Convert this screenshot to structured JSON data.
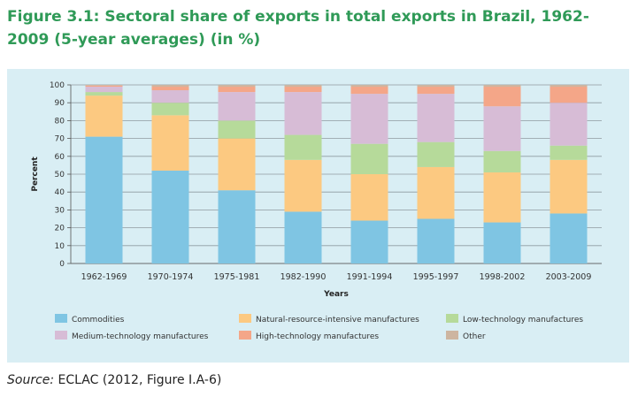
{
  "figure": {
    "title": "Figure 3.1: Sectoral share of exports in total exports in Brazil, 1962-2009 (5-year averages) (in %)",
    "source_label": "Source:",
    "source_text": " ECLAC (2012, Figure I.A-6)"
  },
  "chart_data": {
    "type": "bar",
    "stacked": true,
    "title": "",
    "xlabel": "Years",
    "ylabel": "Percent",
    "ylim": [
      0,
      100
    ],
    "yticks": [
      0,
      10,
      20,
      30,
      40,
      50,
      60,
      70,
      80,
      90,
      100
    ],
    "grid": true,
    "legend_position": "bottom",
    "categories": [
      "1962-1969",
      "1970-1974",
      "1975-1981",
      "1982-1990",
      "1991-1994",
      "1995-1997",
      "1998-2002",
      "2003-2009"
    ],
    "series": [
      {
        "name": "Commodities",
        "color": "#7fc5e3",
        "values": [
          71,
          52,
          41,
          29,
          24,
          25,
          23,
          28
        ]
      },
      {
        "name": "Natural-resource-intensive manufactures",
        "color": "#fcc981",
        "values": [
          23,
          31,
          29,
          29,
          26,
          29,
          28,
          30
        ]
      },
      {
        "name": "Low-technology manufactures",
        "color": "#b6da9a",
        "values": [
          2,
          7,
          10,
          14,
          17,
          14,
          12,
          8
        ]
      },
      {
        "name": "Medium-technology manufactures",
        "color": "#d7bcd6",
        "values": [
          3,
          7,
          16,
          24,
          28,
          27,
          25,
          24
        ]
      },
      {
        "name": "High-technology manufactures",
        "color": "#f4a688",
        "values": [
          0.6,
          2,
          3,
          3,
          4,
          4,
          11,
          9
        ]
      },
      {
        "name": "Other",
        "color": "#cdb5a0",
        "values": [
          0.4,
          1,
          1,
          1,
          1,
          1,
          1,
          1
        ]
      }
    ]
  }
}
